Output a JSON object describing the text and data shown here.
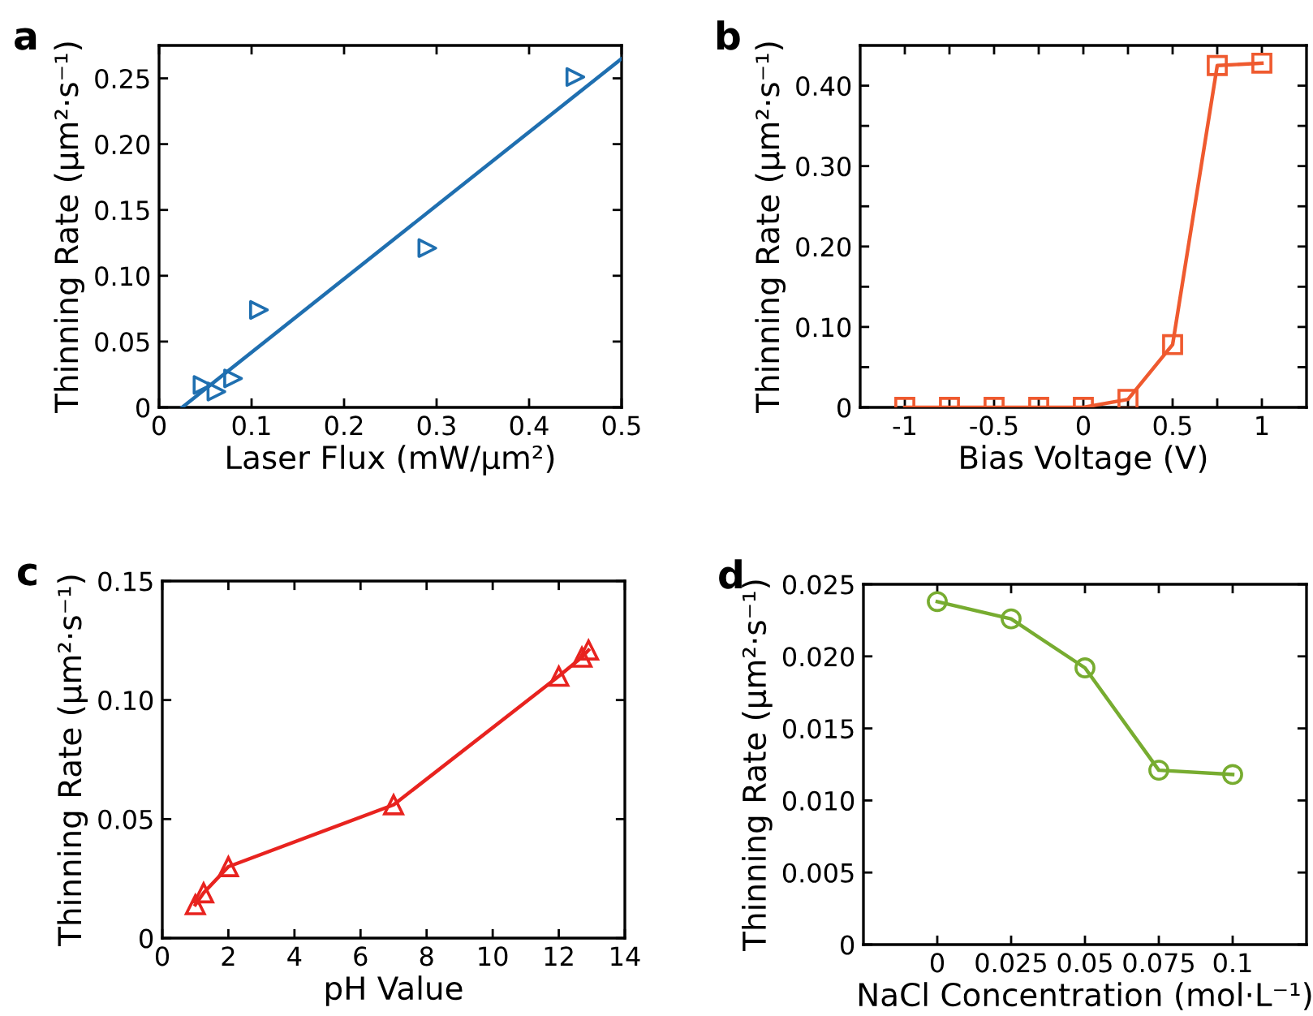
{
  "chart_data": [
    {
      "type": "scatter",
      "title": "a",
      "xlabel": "Laser Flux (mW/μm²)",
      "ylabel": "Thinning Rate (μm²·s⁻¹)",
      "marker": "triangle-right",
      "series": [
        {
          "type": "scatter",
          "color": "#1f6fb0",
          "x": [
            0.047,
            0.062,
            0.08,
            0.108,
            0.29,
            0.45
          ],
          "values": [
            0.017,
            0.012,
            0.022,
            0.074,
            0.121,
            0.251
          ]
        },
        {
          "type": "line",
          "color": "#1f6fb0",
          "marker": "none",
          "x": [
            0.025,
            0.5
          ],
          "values": [
            0,
            0.265
          ]
        }
      ],
      "xlim": [
        0,
        0.5
      ],
      "xticks": [
        0,
        0.1,
        0.2,
        0.3,
        0.4,
        0.5
      ],
      "ylim": [
        0,
        0.275
      ],
      "yticks": [
        0,
        {
          "value": 0.05,
          "label": "0.05"
        },
        {
          "value": 0.1,
          "label": "0.10"
        },
        {
          "value": 0.15,
          "label": "0.15"
        },
        {
          "value": 0.2,
          "label": "0.20"
        },
        {
          "value": 0.25,
          "label": "0.25"
        }
      ]
    },
    {
      "type": "line",
      "title": "b",
      "xlabel": "Bias Voltage (V)",
      "ylabel": "Thinning Rate (μm²·s⁻¹)",
      "marker": "square",
      "x": [
        -1,
        -0.75,
        -0.5,
        -0.25,
        0,
        0.25,
        0.5,
        0.75,
        1
      ],
      "series": [
        {
          "color": "#ef5a2f",
          "values": [
            0,
            0,
            0,
            0,
            0,
            0.01,
            0.078,
            0.425,
            0.428
          ]
        }
      ],
      "xlim": [
        -1.25,
        1.25
      ],
      "xticks": [
        -1,
        {
          "value": -0.75,
          "label": null
        },
        -0.5,
        {
          "value": -0.25,
          "label": null
        },
        0,
        {
          "value": 0.25,
          "label": null
        },
        0.5,
        {
          "value": 0.75,
          "label": null
        },
        1
      ],
      "ylim": [
        0,
        0.45
      ],
      "yticks": [
        0,
        {
          "value": 0.05,
          "label": null
        },
        {
          "value": 0.1,
          "label": "0.10"
        },
        {
          "value": 0.15,
          "label": null
        },
        {
          "value": 0.2,
          "label": "0.20"
        },
        {
          "value": 0.25,
          "label": null
        },
        {
          "value": 0.3,
          "label": "0.30"
        },
        {
          "value": 0.35,
          "label": null
        },
        {
          "value": 0.4,
          "label": "0.40"
        }
      ]
    },
    {
      "type": "line",
      "title": "c",
      "xlabel": "pH Value",
      "ylabel": "Thinning Rate (μm²·s⁻¹)",
      "marker": "triangle",
      "x": [
        1,
        1.25,
        2,
        7,
        12,
        12.7,
        12.9
      ],
      "series": [
        {
          "color": "#e8231f",
          "values": [
            0.014,
            0.019,
            0.03,
            0.056,
            0.11,
            0.118,
            0.121
          ]
        }
      ],
      "xlim": [
        0,
        14
      ],
      "xticks": [
        0,
        2,
        4,
        6,
        8,
        10,
        12,
        14
      ],
      "ylim": [
        0,
        0.15
      ],
      "yticks": [
        0,
        {
          "value": 0.05,
          "label": "0.05"
        },
        {
          "value": 0.1,
          "label": "0.10"
        },
        {
          "value": 0.15,
          "label": "0.15"
        }
      ]
    },
    {
      "type": "line",
      "title": "d",
      "xlabel": "NaCl Concentration (mol·L⁻¹)",
      "ylabel": "Thinning Rate (μm²·s⁻¹)",
      "marker": "circle",
      "x": [
        0,
        0.025,
        0.05,
        0.075,
        0.1
      ],
      "series": [
        {
          "color": "#77ac30",
          "values": [
            0.0238,
            0.0226,
            0.0192,
            0.0121,
            0.0118
          ]
        }
      ],
      "xlim": [
        -0.025,
        0.125
      ],
      "xticks": [
        0,
        0.025,
        0.05,
        0.075,
        0.1
      ],
      "ylim": [
        0,
        0.025
      ],
      "yticks": [
        0,
        0.005,
        {
          "value": 0.01,
          "label": "0.010"
        },
        0.015,
        {
          "value": 0.02,
          "label": "0.020"
        },
        0.025
      ]
    }
  ]
}
